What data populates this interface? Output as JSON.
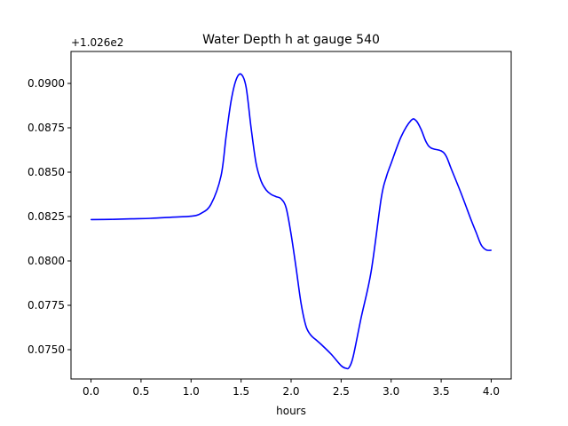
{
  "chart_data": {
    "type": "line",
    "title": "Water Depth h at gauge 540",
    "xlabel": "hours",
    "ylabel": "",
    "y_offset_label": "+1.026e2",
    "xlim": [
      -0.2,
      4.2
    ],
    "ylim": [
      0.07335,
      0.0918
    ],
    "x_ticks": [
      {
        "value": 0.0,
        "label": "0.0"
      },
      {
        "value": 0.5,
        "label": "0.5"
      },
      {
        "value": 1.0,
        "label": "1.0"
      },
      {
        "value": 1.5,
        "label": "1.5"
      },
      {
        "value": 2.0,
        "label": "2.0"
      },
      {
        "value": 2.5,
        "label": "2.5"
      },
      {
        "value": 3.0,
        "label": "3.0"
      },
      {
        "value": 3.5,
        "label": "3.5"
      },
      {
        "value": 4.0,
        "label": "4.0"
      }
    ],
    "y_ticks": [
      {
        "value": 0.075,
        "label": "0.0750"
      },
      {
        "value": 0.0775,
        "label": "0.0775"
      },
      {
        "value": 0.08,
        "label": "0.0800"
      },
      {
        "value": 0.0825,
        "label": "0.0825"
      },
      {
        "value": 0.085,
        "label": "0.0850"
      },
      {
        "value": 0.0875,
        "label": "0.0875"
      },
      {
        "value": 0.09,
        "label": "0.0900"
      }
    ],
    "grid": false,
    "series": [
      {
        "color": "#0000ff",
        "x": [
          0.0,
          0.2,
          0.4,
          0.6,
          0.8,
          1.0,
          1.1,
          1.2,
          1.3,
          1.35,
          1.4,
          1.45,
          1.5,
          1.55,
          1.6,
          1.65,
          1.7,
          1.75,
          1.8,
          1.85,
          1.9,
          1.95,
          2.0,
          2.05,
          2.1,
          2.15,
          2.2,
          2.25,
          2.3,
          2.4,
          2.5,
          2.55,
          2.58,
          2.62,
          2.7,
          2.8,
          2.9,
          2.95,
          3.0,
          3.1,
          3.2,
          3.25,
          3.3,
          3.35,
          3.4,
          3.5,
          3.55,
          3.6,
          3.7,
          3.8,
          3.85,
          3.9,
          3.95,
          4.0
        ],
        "y": [
          0.08233,
          0.08234,
          0.08237,
          0.0824,
          0.08246,
          0.08252,
          0.08268,
          0.0832,
          0.0848,
          0.087,
          0.089,
          0.0902,
          0.09052,
          0.0898,
          0.0875,
          0.0855,
          0.0845,
          0.084,
          0.08375,
          0.08362,
          0.0835,
          0.083,
          0.0815,
          0.0796,
          0.0776,
          0.0763,
          0.0758,
          0.07555,
          0.0753,
          0.07475,
          0.0741,
          0.07395,
          0.074,
          0.0746,
          0.0768,
          0.0794,
          0.0835,
          0.0847,
          0.0855,
          0.087,
          0.08792,
          0.0879,
          0.0874,
          0.0867,
          0.08636,
          0.0862,
          0.0859,
          0.0852,
          0.0838,
          0.0823,
          0.0816,
          0.0809,
          0.08062,
          0.0806
        ]
      }
    ]
  }
}
